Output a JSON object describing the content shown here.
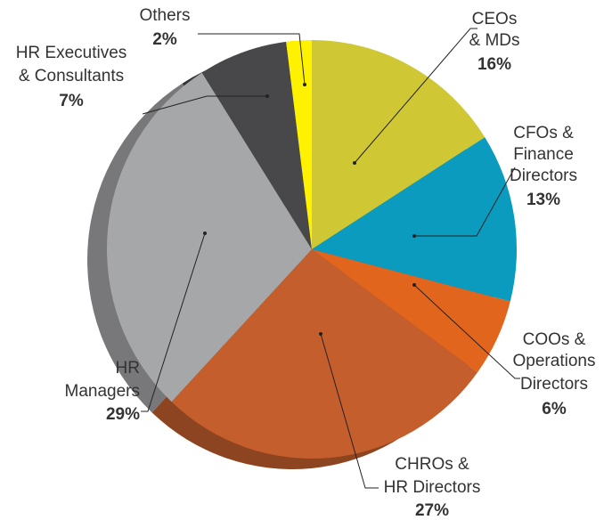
{
  "chart_data": {
    "type": "pie",
    "categories": [
      [
        "CEOs",
        "& MDs"
      ],
      [
        "CFOs &",
        "Finance",
        "Directors"
      ],
      [
        "COOs &",
        "Operations",
        "Directors"
      ],
      [
        "CHROs &",
        "HR Directors"
      ],
      [
        "HR",
        "Managers"
      ],
      [
        "HR Executives",
        "& Consultants"
      ],
      [
        "Others"
      ]
    ],
    "values": [
      16,
      13,
      6,
      27,
      29,
      7,
      2
    ],
    "value_labels": [
      "16%",
      "13%",
      "6%",
      "27%",
      "29%",
      "7%",
      "2%"
    ],
    "colors": [
      "#cfc733",
      "#0a9bbf",
      "#e2651e",
      "#c45e2c",
      "#a6a7a9",
      "#48484a",
      "#fff200"
    ]
  }
}
